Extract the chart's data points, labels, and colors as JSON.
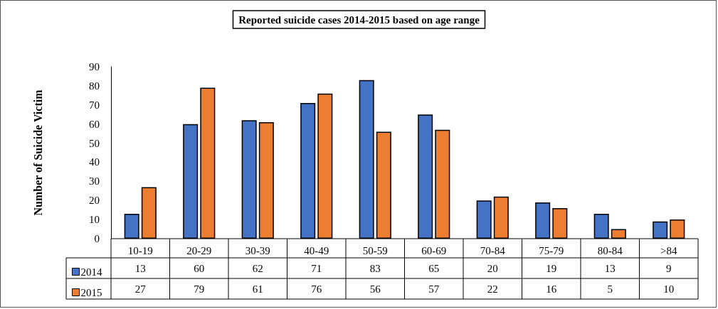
{
  "chart_data": {
    "type": "bar",
    "title": "Reported suicide cases 2014-2015 based on age range",
    "ylabel": "Number of Suicide Victim",
    "categories": [
      "10-19",
      "20-29",
      "30-39",
      "40-49",
      "50-59",
      "60-69",
      "70-84",
      "75-79",
      "80-84",
      ">84"
    ],
    "series": [
      {
        "name": "2014",
        "color": "#4472c4",
        "values": [
          13,
          60,
          62,
          71,
          83,
          65,
          20,
          19,
          13,
          9
        ]
      },
      {
        "name": "2015",
        "color": "#ed7d31",
        "values": [
          27,
          79,
          61,
          76,
          56,
          57,
          22,
          16,
          5,
          10
        ]
      }
    ],
    "ylim": [
      0,
      90
    ],
    "yticks": [
      0,
      10,
      20,
      30,
      40,
      50,
      60,
      70,
      80,
      90
    ],
    "grid": false,
    "legend": "bottom",
    "data_labels": true
  }
}
